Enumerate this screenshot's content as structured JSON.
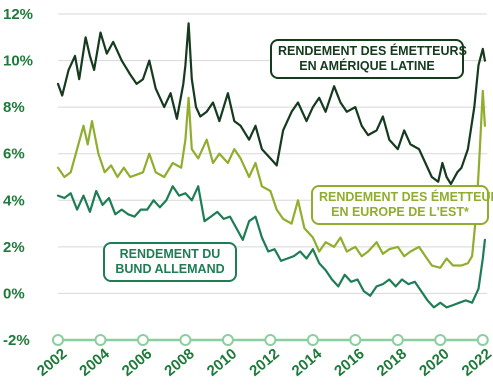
{
  "chart_data": {
    "type": "line",
    "ylim": [
      -2,
      12
    ],
    "yticks": [
      "-2%",
      "0%",
      "2%",
      "4%",
      "6%",
      "8%",
      "10%",
      "12%"
    ],
    "ytick_values": [
      -2,
      0,
      2,
      4,
      6,
      8,
      10,
      12
    ],
    "xlim": [
      2002,
      2022.2
    ],
    "xticks": [
      "2002",
      "2004",
      "2006",
      "2008",
      "2010",
      "2012",
      "2014",
      "2016",
      "2018",
      "2020",
      "2022"
    ],
    "xtick_values": [
      2002,
      2004,
      2006,
      2008,
      2010,
      2012,
      2014,
      2016,
      2018,
      2020,
      2022
    ],
    "grid": "horizontal",
    "colors": {
      "latam": "#153a1e",
      "eu_est": "#8fae2e",
      "bund": "#1f7d55",
      "axis": "#8ccf9e",
      "grid": "#d8d8d8"
    },
    "series": [
      {
        "key": "latam",
        "name_lines": [
          "RENDEMENT DES ÉMETTEURS",
          "EN AMÉRIQUE LATINE"
        ],
        "x": [
          2002.0,
          2002.2,
          2002.5,
          2002.8,
          2003.0,
          2003.3,
          2003.5,
          2003.7,
          2004.0,
          2004.3,
          2004.6,
          2005.0,
          2005.4,
          2005.7,
          2006.0,
          2006.3,
          2006.6,
          2007.0,
          2007.3,
          2007.6,
          2007.9,
          2008.0,
          2008.15,
          2008.3,
          2008.5,
          2008.7,
          2009.0,
          2009.3,
          2009.6,
          2010.0,
          2010.3,
          2010.6,
          2011.0,
          2011.3,
          2011.6,
          2012.0,
          2012.3,
          2012.6,
          2013.0,
          2013.3,
          2013.7,
          2014.0,
          2014.3,
          2014.6,
          2015.0,
          2015.3,
          2015.6,
          2016.0,
          2016.3,
          2016.6,
          2017.0,
          2017.3,
          2017.6,
          2018.0,
          2018.3,
          2018.6,
          2019.0,
          2019.3,
          2019.6,
          2019.9,
          2020.1,
          2020.3,
          2020.5,
          2020.8,
          2021.0,
          2021.3,
          2021.6,
          2021.8,
          2022.0,
          2022.1
        ],
        "values": [
          9.0,
          8.5,
          9.6,
          10.2,
          9.2,
          11.0,
          10.2,
          9.6,
          11.2,
          10.3,
          10.8,
          10.0,
          9.4,
          9.0,
          9.2,
          10.0,
          8.8,
          8.0,
          8.6,
          7.5,
          9.0,
          9.8,
          11.6,
          9.2,
          8.0,
          7.6,
          7.8,
          8.2,
          7.4,
          8.6,
          7.4,
          7.2,
          6.6,
          7.2,
          6.2,
          5.8,
          5.5,
          7.0,
          7.8,
          8.2,
          7.4,
          8.0,
          8.4,
          7.8,
          8.9,
          8.2,
          7.8,
          8.0,
          7.2,
          6.8,
          7.0,
          7.6,
          6.6,
          6.2,
          7.0,
          6.4,
          6.2,
          5.6,
          5.0,
          4.8,
          5.6,
          5.0,
          4.7,
          5.2,
          5.4,
          6.2,
          8.0,
          9.8,
          10.5,
          10.0
        ]
      },
      {
        "key": "eu_est",
        "name_lines": [
          "RENDEMENT DES ÉMETTEURS",
          "EN EUROPE DE L'EST*"
        ],
        "x": [
          2002.0,
          2002.3,
          2002.6,
          2002.9,
          2003.2,
          2003.4,
          2003.6,
          2003.9,
          2004.2,
          2004.5,
          2004.8,
          2005.1,
          2005.4,
          2005.7,
          2006.0,
          2006.3,
          2006.6,
          2007.0,
          2007.4,
          2007.8,
          2008.0,
          2008.15,
          2008.3,
          2008.6,
          2009.0,
          2009.3,
          2009.6,
          2010.0,
          2010.3,
          2010.6,
          2011.0,
          2011.3,
          2011.6,
          2012.0,
          2012.3,
          2012.6,
          2013.0,
          2013.3,
          2013.6,
          2014.0,
          2014.3,
          2014.6,
          2015.0,
          2015.3,
          2015.6,
          2016.0,
          2016.3,
          2016.6,
          2017.0,
          2017.3,
          2017.6,
          2018.0,
          2018.3,
          2018.6,
          2019.0,
          2019.3,
          2019.6,
          2020.0,
          2020.3,
          2020.6,
          2021.0,
          2021.3,
          2021.5,
          2021.7,
          2021.85,
          2022.0,
          2022.1
        ],
        "values": [
          5.4,
          5.0,
          5.2,
          6.2,
          7.2,
          6.4,
          7.4,
          6.0,
          5.2,
          5.5,
          5.0,
          5.4,
          5.0,
          5.1,
          5.2,
          6.0,
          5.2,
          5.0,
          5.6,
          5.4,
          6.6,
          8.4,
          6.2,
          5.8,
          6.6,
          5.6,
          6.0,
          5.6,
          6.2,
          5.8,
          5.0,
          5.6,
          4.6,
          4.4,
          3.6,
          3.2,
          3.0,
          4.0,
          2.8,
          2.4,
          1.8,
          2.2,
          2.0,
          2.4,
          1.8,
          2.0,
          1.6,
          1.8,
          2.2,
          1.7,
          1.9,
          2.0,
          1.6,
          1.8,
          2.0,
          1.6,
          1.2,
          1.1,
          1.5,
          1.2,
          1.2,
          1.3,
          1.6,
          3.5,
          6.0,
          8.7,
          7.2
        ]
      },
      {
        "key": "bund",
        "name_lines": [
          "RENDEMENT DU",
          "BUND ALLEMAND"
        ],
        "x": [
          2002.0,
          2002.3,
          2002.6,
          2002.9,
          2003.2,
          2003.5,
          2003.8,
          2004.1,
          2004.4,
          2004.7,
          2005.0,
          2005.3,
          2005.6,
          2005.9,
          2006.2,
          2006.5,
          2006.8,
          2007.1,
          2007.4,
          2007.7,
          2008.0,
          2008.3,
          2008.6,
          2008.9,
          2009.2,
          2009.5,
          2009.8,
          2010.1,
          2010.4,
          2010.7,
          2011.0,
          2011.3,
          2011.6,
          2011.9,
          2012.2,
          2012.5,
          2012.8,
          2013.1,
          2013.4,
          2013.7,
          2014.0,
          2014.3,
          2014.6,
          2014.9,
          2015.2,
          2015.5,
          2015.8,
          2016.1,
          2016.4,
          2016.7,
          2017.0,
          2017.3,
          2017.6,
          2017.9,
          2018.2,
          2018.5,
          2018.8,
          2019.1,
          2019.4,
          2019.7,
          2020.0,
          2020.3,
          2020.6,
          2020.9,
          2021.2,
          2021.5,
          2021.8,
          2022.0,
          2022.1
        ],
        "values": [
          4.2,
          4.1,
          4.3,
          3.6,
          4.2,
          3.5,
          4.4,
          3.8,
          4.1,
          3.4,
          3.6,
          3.4,
          3.3,
          3.6,
          3.6,
          4.0,
          3.7,
          4.0,
          4.6,
          4.2,
          4.3,
          4.0,
          4.6,
          3.1,
          3.3,
          3.5,
          3.2,
          3.3,
          2.8,
          2.3,
          3.1,
          3.3,
          2.4,
          1.8,
          1.9,
          1.4,
          1.5,
          1.6,
          1.8,
          1.5,
          1.9,
          1.3,
          1.0,
          0.6,
          0.3,
          0.8,
          0.5,
          0.6,
          0.1,
          -0.1,
          0.3,
          0.4,
          0.6,
          0.3,
          0.6,
          0.4,
          0.5,
          0.1,
          -0.3,
          -0.6,
          -0.4,
          -0.6,
          -0.5,
          -0.4,
          -0.3,
          -0.4,
          0.2,
          1.5,
          2.3
        ]
      }
    ]
  }
}
